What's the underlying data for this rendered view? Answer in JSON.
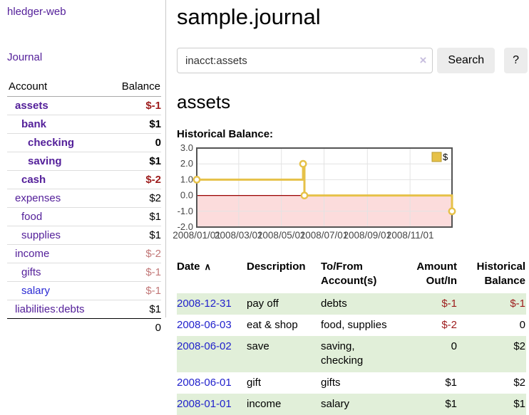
{
  "app": {
    "title": "hledger-web"
  },
  "colors": {
    "link_purple": "#54209a",
    "link_blue": "#2a2ad4",
    "negative_strong": "#9d1b1b",
    "negative_soft": "#c27878",
    "row_stripe_green": "#e1efd9",
    "chart_line_gold": "#e6c148",
    "chart_negative_region": "#fcdcdc",
    "chart_zero_line": "#990000"
  },
  "icons": {
    "sort_asc": "∧",
    "clear": "×",
    "legend_swatch": "gold-square"
  },
  "sidebar": {
    "journal_label": "Journal",
    "accounts_table": {
      "headers": [
        "Account",
        "Balance"
      ],
      "rows": [
        {
          "name": "assets",
          "indent": 1,
          "bold": true,
          "link_style": "visited",
          "balance": "$-1",
          "balance_style": "neg-strong"
        },
        {
          "name": "bank",
          "indent": 2,
          "bold": true,
          "link_style": "visited",
          "balance": "$1",
          "balance_style": "pos"
        },
        {
          "name": "checking",
          "indent": 3,
          "bold": true,
          "link_style": "visited",
          "balance": "0",
          "balance_style": "pos"
        },
        {
          "name": "saving",
          "indent": 3,
          "bold": true,
          "link_style": "visited",
          "balance": "$1",
          "balance_style": "pos"
        },
        {
          "name": "cash",
          "indent": 2,
          "bold": true,
          "link_style": "visited",
          "balance": "$-2",
          "balance_style": "neg-strong"
        },
        {
          "name": "expenses",
          "indent": 1,
          "bold": false,
          "link_style": "visited",
          "balance": "$2",
          "balance_style": "pos"
        },
        {
          "name": "food",
          "indent": 2,
          "bold": false,
          "link_style": "visited",
          "balance": "$1",
          "balance_style": "pos"
        },
        {
          "name": "supplies",
          "indent": 2,
          "bold": false,
          "link_style": "visited",
          "balance": "$1",
          "balance_style": "pos"
        },
        {
          "name": "income",
          "indent": 1,
          "bold": false,
          "link_style": "visited",
          "balance": "$-2",
          "balance_style": "neg-soft"
        },
        {
          "name": "gifts",
          "indent": 2,
          "bold": false,
          "link_style": "visited",
          "balance": "$-1",
          "balance_style": "neg-soft"
        },
        {
          "name": "salary",
          "indent": 2,
          "bold": false,
          "link_style": "unvisited",
          "balance": "$-1",
          "balance_style": "neg-soft"
        },
        {
          "name": "liabilities:debts",
          "indent": 1,
          "bold": false,
          "link_style": "visited",
          "balance": "$1",
          "balance_style": "pos"
        }
      ],
      "total": "0"
    }
  },
  "main": {
    "title": "sample.journal",
    "search": {
      "value": "inacct:assets",
      "button_label": "Search",
      "help_label": "?"
    },
    "account_heading": "assets",
    "chart_label": "Historical Balance:"
  },
  "chart_data": {
    "type": "line",
    "subtype": "step-after",
    "title": "Historical Balance:",
    "series": [
      {
        "name": "$",
        "points": [
          {
            "date": "2008-01-01",
            "value": 1
          },
          {
            "date": "2008-06-01",
            "value": 2
          },
          {
            "date": "2008-06-03",
            "value": 0
          },
          {
            "date": "2008-12-31",
            "value": -1
          }
        ]
      }
    ],
    "x_range": [
      "2008-01-01",
      "2008-12-31"
    ],
    "x_ticks": [
      {
        "date": "2008-01-01",
        "label": "2008/01/01"
      },
      {
        "date": "2008-03-01",
        "label": "2008/03/01"
      },
      {
        "date": "2008-05-01",
        "label": "2008/05/01"
      },
      {
        "date": "2008-07-01",
        "label": "2008/07/01"
      },
      {
        "date": "2008-09-01",
        "label": "2008/09/01"
      },
      {
        "date": "2008-11-01",
        "label": "2008/11/01"
      }
    ],
    "y_ticks": [
      {
        "value": 3,
        "label": "3.0"
      },
      {
        "value": 2,
        "label": "2.0"
      },
      {
        "value": 1,
        "label": "1.0"
      },
      {
        "value": 0,
        "label": "0.0"
      },
      {
        "value": -1,
        "label": "-1.0"
      },
      {
        "value": -2,
        "label": "-2.0"
      }
    ],
    "ylim": [
      -2,
      3
    ],
    "grid": true,
    "legend": {
      "label": "$",
      "position": "top-right"
    },
    "negative_region_shaded": true
  },
  "transactions": {
    "headers": [
      {
        "label": "Date",
        "sorted": "asc"
      },
      {
        "label": "Description"
      },
      {
        "label": "To/From Account(s)"
      },
      {
        "label": "Amount Out/In",
        "align": "right"
      },
      {
        "label": "Historical Balance",
        "align": "right"
      }
    ],
    "rows": [
      {
        "date": "2008-12-31",
        "description": "pay off",
        "accounts": "debts",
        "amount": "$-1",
        "amount_neg": true,
        "balance": "$-1",
        "balance_neg": true
      },
      {
        "date": "2008-06-03",
        "description": "eat & shop",
        "accounts": "food, supplies",
        "amount": "$-2",
        "amount_neg": true,
        "balance": "0",
        "balance_neg": false
      },
      {
        "date": "2008-06-02",
        "description": "save",
        "accounts": "saving, checking",
        "amount": "0",
        "amount_neg": false,
        "balance": "$2",
        "balance_neg": false
      },
      {
        "date": "2008-06-01",
        "description": "gift",
        "accounts": "gifts",
        "amount": "$1",
        "amount_neg": false,
        "balance": "$2",
        "balance_neg": false
      },
      {
        "date": "2008-01-01",
        "description": "income",
        "accounts": "salary",
        "amount": "$1",
        "amount_neg": false,
        "balance": "$1",
        "balance_neg": false
      }
    ]
  }
}
